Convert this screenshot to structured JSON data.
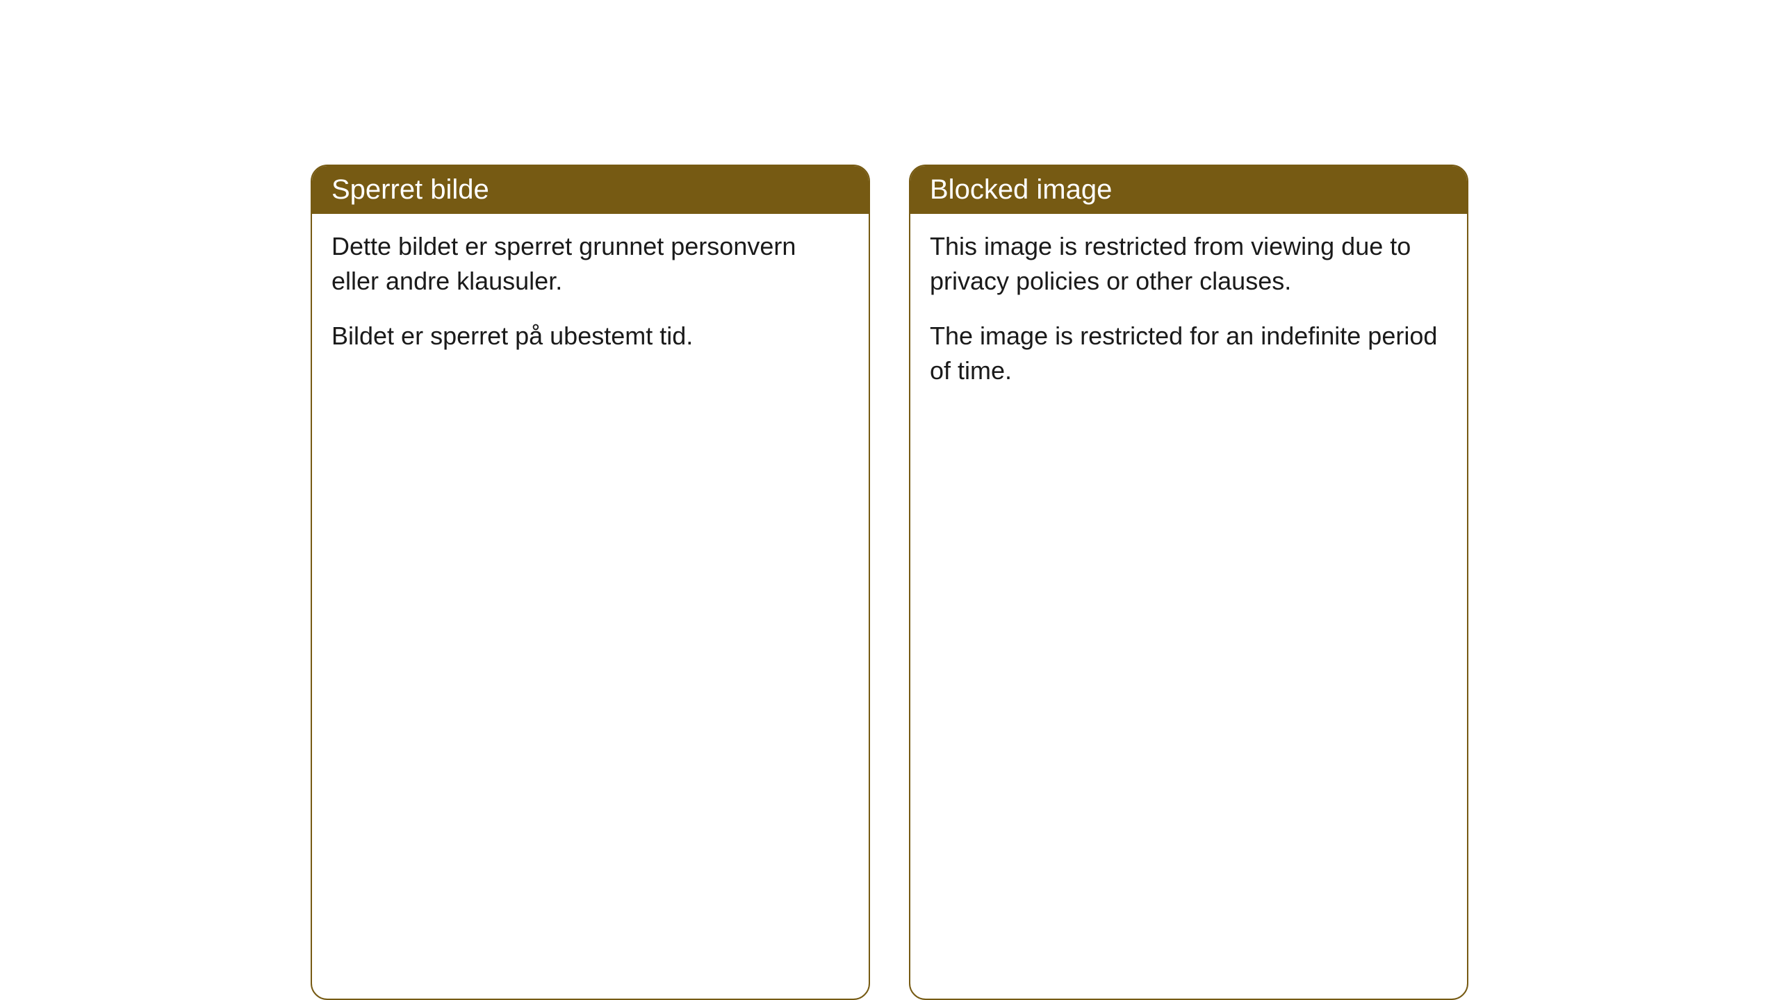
{
  "theme": {
    "header_bg": "#765a13",
    "header_text": "#ffffff",
    "border_color": "#765a13",
    "body_bg": "#ffffff",
    "body_text": "#1a1a1a",
    "border_radius": "24px",
    "header_font_size": 40,
    "body_font_size": 36
  },
  "cards": {
    "left": {
      "title": "Sperret bilde",
      "paragraph1": "Dette bildet er sperret grunnet personvern eller andre klausuler.",
      "paragraph2": "Bildet er sperret på ubestemt tid."
    },
    "right": {
      "title": "Blocked image",
      "paragraph1": "This image is restricted from viewing due to privacy policies or other clauses.",
      "paragraph2": "The image is restricted for an indefinite period of time."
    }
  }
}
